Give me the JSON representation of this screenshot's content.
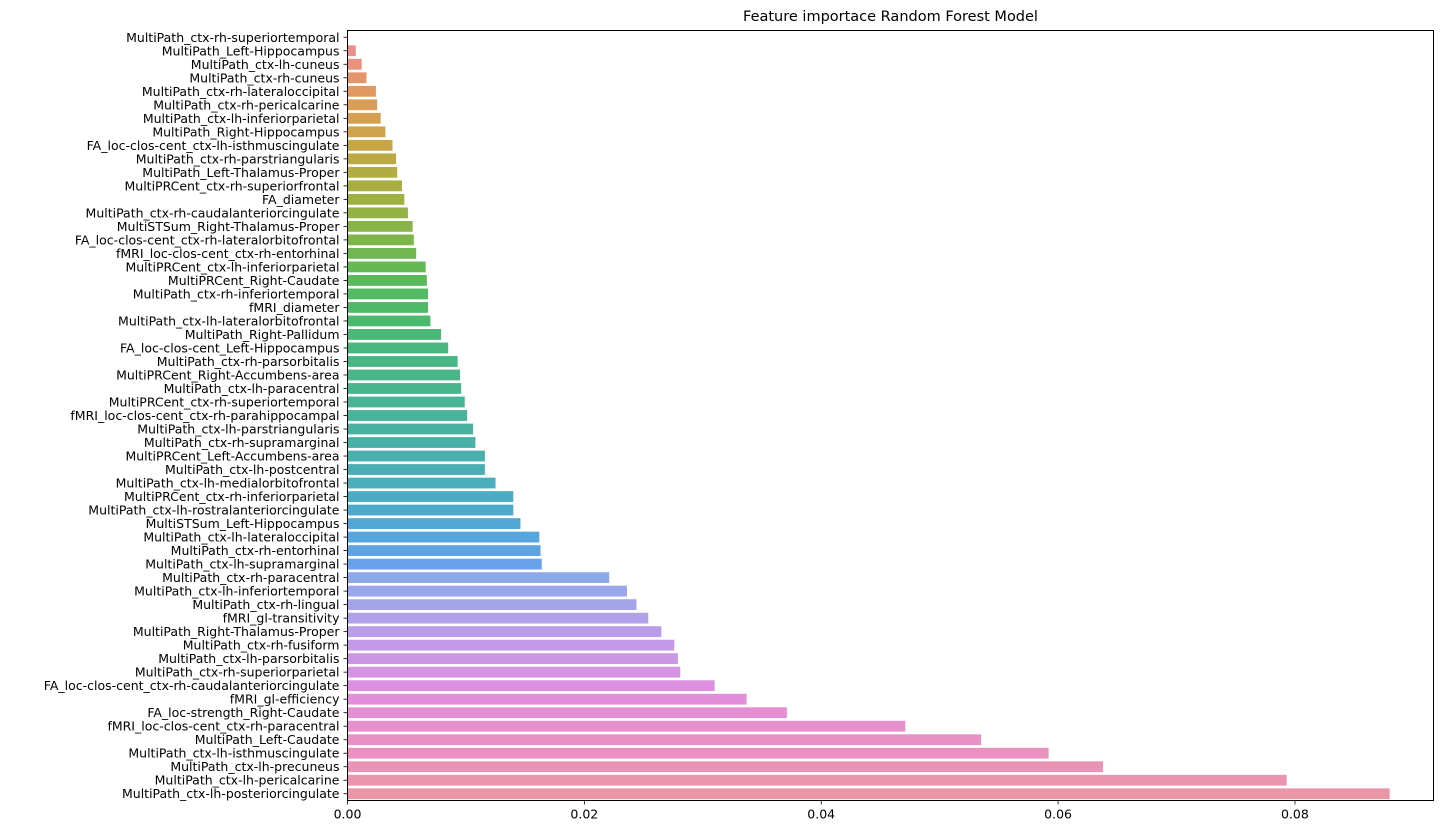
{
  "chart_data": {
    "type": "bar",
    "orientation": "horizontal",
    "title": "Feature importace Random Forest Model",
    "xlabel": "",
    "ylabel": "",
    "xlim": [
      0,
      0.0917
    ],
    "xticks": [
      "0.00",
      "0.02",
      "0.04",
      "0.06",
      "0.08"
    ],
    "xtick_values": [
      0,
      0.02,
      0.04,
      0.06,
      0.08
    ],
    "grid": false,
    "legend": "none",
    "categories": [
      "MultiPath_ctx-rh-superiortemporal",
      "MultiPath_Left-Hippocampus",
      "MultiPath_ctx-lh-cuneus",
      "MultiPath_ctx-rh-cuneus",
      "MultiPath_ctx-rh-lateraloccipital",
      "MultiPath_ctx-rh-pericalcarine",
      "MultiPath_ctx-lh-inferiorparietal",
      "MultiPath_Right-Hippocampus",
      "FA_loc-clos-cent_ctx-lh-isthmuscingulate",
      "MultiPath_ctx-rh-parstriangularis",
      "MultiPath_Left-Thalamus-Proper",
      "MultiPRCent_ctx-rh-superiorfrontal",
      "FA_diameter",
      "MultiPath_ctx-rh-caudalanteriorcingulate",
      "MultiSTSum_Right-Thalamus-Proper",
      "FA_loc-clos-cent_ctx-rh-lateralorbitofrontal",
      "fMRI_loc-clos-cent_ctx-rh-entorhinal",
      "MultiPRCent_ctx-lh-inferiorparietal",
      "MultiPRCent_Right-Caudate",
      "MultiPath_ctx-rh-inferiortemporal",
      "fMRI_diameter",
      "MultiPath_ctx-lh-lateralorbitofrontal",
      "MultiPath_Right-Pallidum",
      "FA_loc-clos-cent_Left-Hippocampus",
      "MultiPath_ctx-rh-parsorbitalis",
      "MultiPRCent_Right-Accumbens-area",
      "MultiPath_ctx-lh-paracentral",
      "MultiPRCent_ctx-rh-superiortemporal",
      "fMRI_loc-clos-cent_ctx-rh-parahippocampal",
      "MultiPath_ctx-lh-parstriangularis",
      "MultiPath_ctx-rh-supramarginal",
      "MultiPRCent_Left-Accumbens-area",
      "MultiPath_ctx-lh-postcentral",
      "MultiPath_ctx-lh-medialorbitofrontal",
      "MultiPRCent_ctx-rh-inferiorparietal",
      "MultiPath_ctx-lh-rostralanteriorcingulate",
      "MultiSTSum_Left-Hippocampus",
      "MultiPath_ctx-lh-lateraloccipital",
      "MultiPath_ctx-rh-entorhinal",
      "MultiPath_ctx-lh-supramarginal",
      "MultiPath_ctx-rh-paracentral",
      "MultiPath_ctx-lh-inferiortemporal",
      "MultiPath_ctx-rh-lingual",
      "fMRI_gl-transitivity",
      "MultiPath_Right-Thalamus-Proper",
      "MultiPath_ctx-rh-fusiform",
      "MultiPath_ctx-lh-parsorbitalis",
      "MultiPath_ctx-rh-superiorparietal",
      "FA_loc-clos-cent_ctx-rh-caudalanteriorcingulate",
      "fMRI_gl-efficiency",
      "FA_loc-strength_Right-Caudate",
      "fMRI_loc-clos-cent_ctx-rh-paracentral",
      "MultiPath_Left-Caudate",
      "MultiPath_ctx-lh-isthmuscingulate",
      "MultiPath_ctx-lh-precuneus",
      "MultiPath_ctx-lh-pericalcarine",
      "MultiPath_ctx-lh-posteriorcingulate"
    ],
    "values": [
      0.0,
      0.0007,
      0.0012,
      0.0016,
      0.0024,
      0.0025,
      0.0028,
      0.0032,
      0.0038,
      0.0041,
      0.0042,
      0.0046,
      0.0048,
      0.0051,
      0.0055,
      0.0056,
      0.0058,
      0.0066,
      0.0067,
      0.0068,
      0.0068,
      0.007,
      0.0079,
      0.0085,
      0.0093,
      0.0095,
      0.0096,
      0.0099,
      0.0101,
      0.0106,
      0.0108,
      0.0116,
      0.0116,
      0.0125,
      0.014,
      0.014,
      0.0146,
      0.0162,
      0.0163,
      0.0164,
      0.0221,
      0.0236,
      0.0244,
      0.0254,
      0.0265,
      0.0276,
      0.0279,
      0.0281,
      0.031,
      0.0337,
      0.0371,
      0.0471,
      0.0535,
      0.0592,
      0.0638,
      0.0793,
      0.088
    ],
    "colors": [
      "#ea8f97",
      "#ea908a",
      "#e8927b",
      "#e5956c",
      "#e19960",
      "#db9c57",
      "#d6a050",
      "#cfa34b",
      "#c6a647",
      "#bca944",
      "#b2ac42",
      "#a8ae42",
      "#9fb042",
      "#94b244",
      "#89b447",
      "#7db54b",
      "#71b750",
      "#65b855",
      "#59b95b",
      "#52ba62",
      "#4eb969",
      "#4bb970",
      "#4ab877",
      "#49b77d",
      "#48b783",
      "#48b689",
      "#48b58f",
      "#48b495",
      "#48b39b",
      "#48b2a1",
      "#48b1a7",
      "#49b0ae",
      "#4aafb5",
      "#4aaebc",
      "#4cacc4",
      "#4eaacc",
      "#52a7d5",
      "#56a5dd",
      "#5da2e5",
      "#68a0ea",
      "#8ea9e8",
      "#9aa6e9",
      "#a6a4e9",
      "#b0a1e9",
      "#ba9de8",
      "#c49ae7",
      "#cd96e5",
      "#d593e3",
      "#dc90df",
      "#e18fda",
      "#e48fd4",
      "#e690cd",
      "#e891c6",
      "#e992bf",
      "#ea93b7",
      "#ea94af",
      "#e996a7"
    ]
  }
}
